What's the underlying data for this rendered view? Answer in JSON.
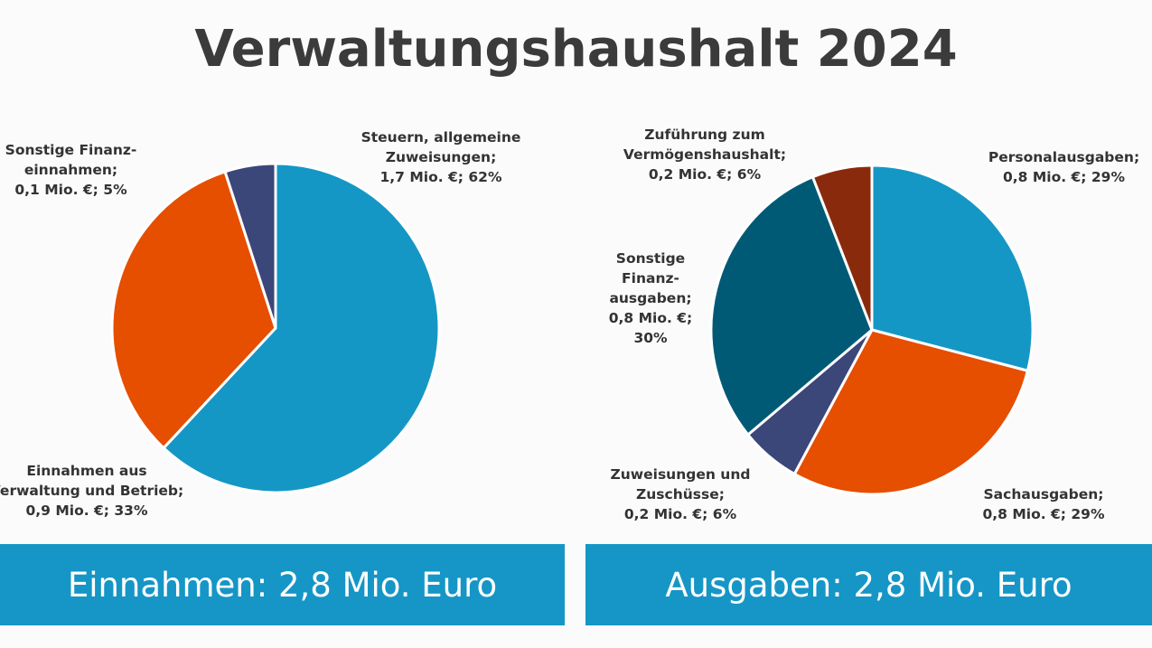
{
  "title": "Verwaltungshaushalt 2024",
  "chart_data": [
    {
      "type": "pie",
      "title": "Einnahmen: 2,8 Mio. Euro",
      "slices": [
        {
          "name": "Steuern, allgemeine Zuweisungen",
          "value_mio_eur": 1.7,
          "percent": 62,
          "color": "#1597c5",
          "label_lines": [
            "Steuern, allgemeine",
            "Zuweisungen;",
            "1,7 Mio. €; 62%"
          ]
        },
        {
          "name": "Einnahmen aus Verwaltung und Betrieb",
          "value_mio_eur": 0.9,
          "percent": 33,
          "color": "#e64e00",
          "label_lines": [
            "Einnahmen aus",
            "Verwaltung und Betrieb;",
            "0,9 Mio. €; 33%"
          ]
        },
        {
          "name": "Sonstige Finanzeinnahmen",
          "value_mio_eur": 0.1,
          "percent": 5,
          "color": "#3b4679",
          "label_lines": [
            "Sonstige Finanz-",
            "einnahmen;",
            "0,1 Mio. €; 5%"
          ]
        }
      ]
    },
    {
      "type": "pie",
      "title": "Ausgaben: 2,8 Mio. Euro",
      "slices": [
        {
          "name": "Personalausgaben",
          "value_mio_eur": 0.8,
          "percent": 29,
          "color": "#1597c5",
          "label_lines": [
            "Personalausgaben;",
            "0,8 Mio. €; 29%"
          ]
        },
        {
          "name": "Sachausgaben",
          "value_mio_eur": 0.8,
          "percent": 29,
          "color": "#e64e00",
          "label_lines": [
            "Sachausgaben;",
            "0,8 Mio. €; 29%"
          ]
        },
        {
          "name": "Zuweisungen und Zuschüsse",
          "value_mio_eur": 0.2,
          "percent": 6,
          "color": "#3b4679",
          "label_lines": [
            "Zuweisungen und",
            "Zuschüsse;",
            "0,2 Mio. €; 6%"
          ]
        },
        {
          "name": "Sonstige Finanzausgaben",
          "value_mio_eur": 0.8,
          "percent": 30,
          "color": "#005a75",
          "label_lines": [
            "Sonstige",
            "Finanz-",
            "ausgaben;",
            "0,8 Mio. €;",
            "30%"
          ]
        },
        {
          "name": "Zuführung zum Vermögenshaushalt",
          "value_mio_eur": 0.2,
          "percent": 6,
          "color": "#8a2a0c",
          "label_lines": [
            "Zuführung zum",
            "Vermögenshaushalt;",
            "0,2 Mio. €; 6%"
          ]
        }
      ]
    }
  ]
}
